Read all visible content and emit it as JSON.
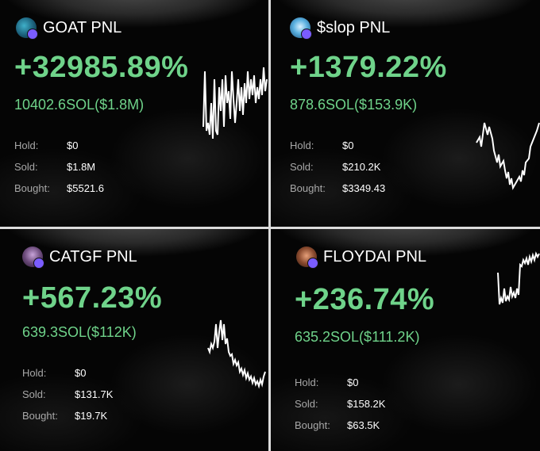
{
  "cards": [
    {
      "title": "GOAT PNL",
      "pct": "+32985.89%",
      "sol": "10402.6SOL($1.8M)",
      "hold_label": "Hold:",
      "hold": "$0",
      "sold_label": "Sold:",
      "sold": "$1.8M",
      "bought_label": "Bought:",
      "bought": "$5521.6",
      "avatar_icon": "goat-token-icon"
    },
    {
      "title": "$slop PNL",
      "pct": "+1379.22%",
      "sol": "878.6SOL($153.9K)",
      "hold_label": "Hold:",
      "hold": "$0",
      "sold_label": "Sold:",
      "sold": "$210.2K",
      "bought_label": "Bought:",
      "bought": "$3349.43",
      "avatar_icon": "slop-token-icon"
    },
    {
      "title": "CATGF PNL",
      "pct": "+567.23%",
      "sol": "639.3SOL($112K)",
      "hold_label": "Hold:",
      "hold": "$0",
      "sold_label": "Sold:",
      "sold": "$131.7K",
      "bought_label": "Bought:",
      "bought": "$19.7K",
      "avatar_icon": "catgf-token-icon"
    },
    {
      "title": "FLOYDAI PNL",
      "pct": "+236.74%",
      "sol": "635.2SOL($111.2K)",
      "hold_label": "Hold:",
      "hold": "$0",
      "sold_label": "Sold:",
      "sold": "$158.2K",
      "bought_label": "Bought:",
      "bought": "$63.5K",
      "avatar_icon": "floydai-token-icon"
    }
  ],
  "colors": {
    "gain": "#6fd38a",
    "label": "#a8a8a8",
    "text": "#ffffff",
    "background": "#050505"
  }
}
